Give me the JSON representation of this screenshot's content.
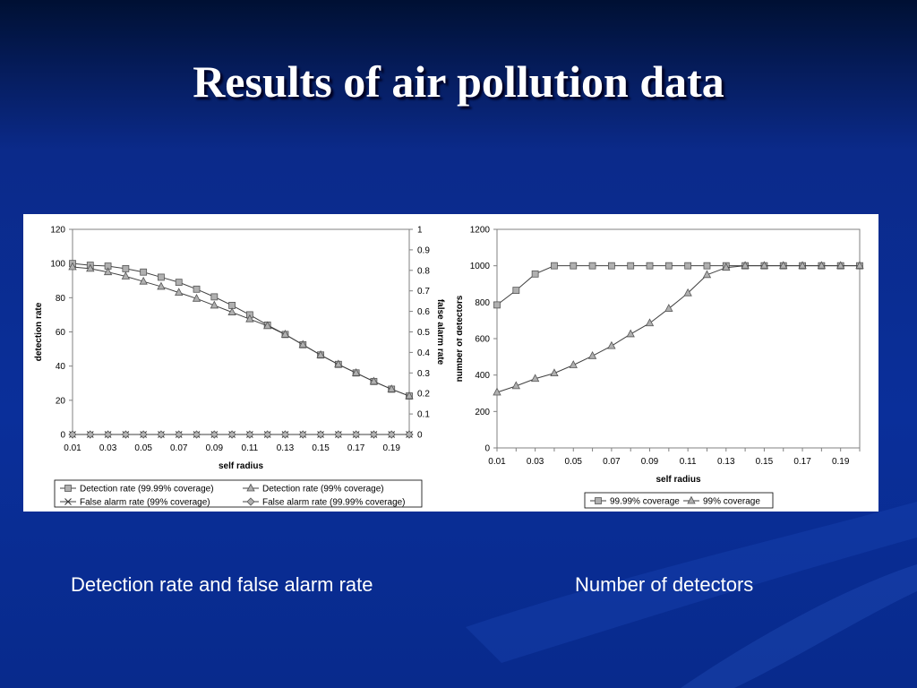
{
  "slide": {
    "title": "Results of  air pollution data",
    "caption_left": "Detection rate and false alarm rate",
    "caption_right": "Number of detectors"
  },
  "colors": {
    "background": "#0a2f9a",
    "marker_fill": "#b0b0b0",
    "line": "#555555"
  },
  "chart_data": [
    {
      "type": "line",
      "title": "",
      "xlabel": "self radius",
      "ylabel": "detection rate",
      "y2label": "false alarm rate",
      "xlim": [
        0.01,
        0.2
      ],
      "ylim": [
        0,
        120
      ],
      "y2lim": [
        0,
        1
      ],
      "x_ticks": [
        "0.01",
        "0.03",
        "0.05",
        "0.07",
        "0.09",
        "0.11",
        "0.13",
        "0.15",
        "0.17",
        "0.19"
      ],
      "y_ticks": [
        "0",
        "20",
        "40",
        "60",
        "80",
        "100",
        "120"
      ],
      "y2_ticks": [
        "0",
        "0.1",
        "0.2",
        "0.3",
        "0.4",
        "0.5",
        "0.6",
        "0.7",
        "0.8",
        "0.9",
        "1"
      ],
      "grid": false,
      "legend_position": "bottom",
      "x": [
        0.01,
        0.02,
        0.03,
        0.04,
        0.05,
        0.06,
        0.07,
        0.08,
        0.09,
        0.1,
        0.11,
        0.12,
        0.13,
        0.14,
        0.15,
        0.16,
        0.17,
        0.18,
        0.19,
        0.2
      ],
      "series": [
        {
          "name": "Detection rate (99.99% coverage)",
          "axis": "left",
          "marker": "square",
          "values": [
            100,
            99,
            98.5,
            97,
            95,
            92,
            89,
            85,
            80.5,
            75.5,
            70,
            64,
            58.5,
            52.5,
            46.5,
            41,
            36,
            31,
            26.5,
            22.5
          ]
        },
        {
          "name": "Detection rate (99% coverage)",
          "axis": "left",
          "marker": "triangle",
          "values": [
            98,
            97,
            95,
            92.5,
            89.5,
            86.5,
            83,
            79.5,
            75.5,
            71.5,
            67.5,
            63.5,
            58.5,
            52.5,
            46.5,
            41,
            36,
            31,
            26.5,
            22.5
          ]
        },
        {
          "name": "False alarm rate (99% coverage)",
          "axis": "right",
          "marker": "x",
          "values": [
            0,
            0,
            0,
            0,
            0,
            0,
            0,
            0,
            0,
            0,
            0,
            0,
            0,
            0,
            0,
            0,
            0,
            0,
            0,
            0
          ]
        },
        {
          "name": "False alarm rate (99.99% coverage)",
          "axis": "right",
          "marker": "diamond",
          "values": [
            0,
            0,
            0,
            0,
            0,
            0,
            0,
            0,
            0,
            0,
            0,
            0,
            0,
            0,
            0,
            0,
            0,
            0,
            0,
            0
          ]
        }
      ]
    },
    {
      "type": "line",
      "title": "",
      "xlabel": "self radius",
      "ylabel": "number of detectors",
      "xlim": [
        0.01,
        0.2
      ],
      "ylim": [
        0,
        1200
      ],
      "x_ticks": [
        "0.01",
        "0.03",
        "0.05",
        "0.07",
        "0.09",
        "0.11",
        "0.13",
        "0.15",
        "0.17",
        "0.19"
      ],
      "y_ticks": [
        "0",
        "200",
        "400",
        "600",
        "800",
        "1000",
        "1200"
      ],
      "grid": false,
      "legend_position": "bottom",
      "x": [
        0.01,
        0.02,
        0.03,
        0.04,
        0.05,
        0.06,
        0.07,
        0.08,
        0.09,
        0.1,
        0.11,
        0.12,
        0.13,
        0.14,
        0.15,
        0.16,
        0.17,
        0.18,
        0.19,
        0.2
      ],
      "series": [
        {
          "name": "99.99% coverage",
          "marker": "square",
          "values": [
            785,
            865,
            955,
            1000,
            1000,
            1000,
            1000,
            1000,
            1000,
            1000,
            1000,
            1000,
            1000,
            1000,
            1000,
            1000,
            1000,
            1000,
            1000,
            1000
          ]
        },
        {
          "name": "99% coverage",
          "marker": "triangle",
          "values": [
            305,
            340,
            380,
            410,
            455,
            505,
            560,
            625,
            685,
            765,
            850,
            950,
            990,
            1000,
            1000,
            1000,
            1000,
            1000,
            1000,
            1000
          ]
        }
      ]
    }
  ]
}
